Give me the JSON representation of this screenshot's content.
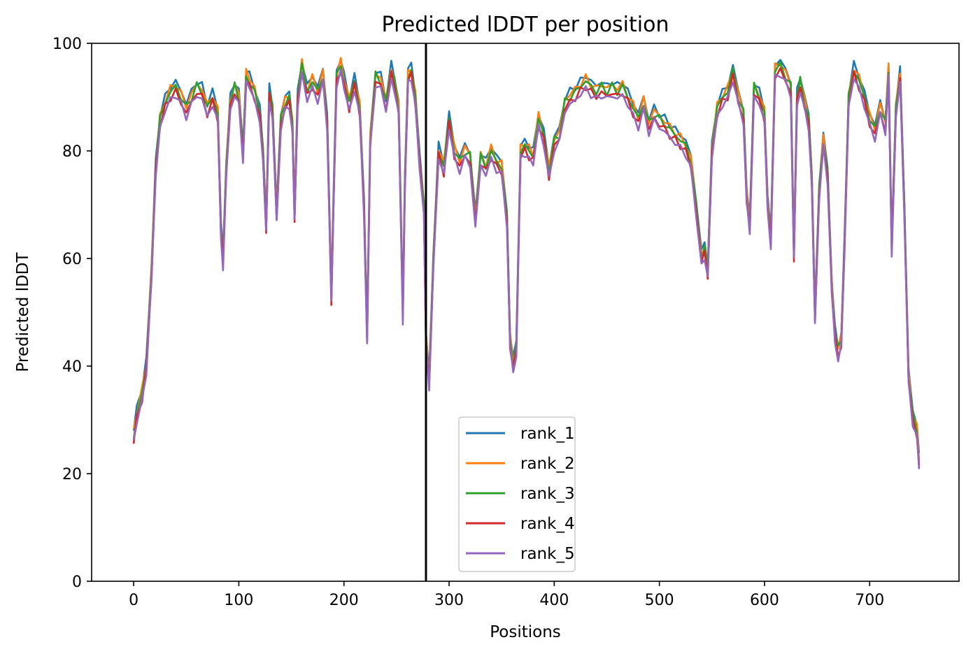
{
  "chart_data": {
    "type": "line",
    "title": "Predicted lDDT per position",
    "xlabel": "Positions",
    "ylabel": "Predicted lDDT",
    "xlim": [
      -40,
      785
    ],
    "ylim": [
      0,
      100
    ],
    "xticks": [
      0,
      100,
      200,
      300,
      400,
      500,
      600,
      700
    ],
    "yticks": [
      0,
      20,
      40,
      60,
      80,
      100
    ],
    "grid": false,
    "legend_position": "lower-center",
    "vertical_marker_x": 278,
    "series": [
      {
        "name": "rank_1",
        "color": "#1f77b4",
        "offset": 1.0
      },
      {
        "name": "rank_2",
        "color": "#ff7f0e",
        "offset": 0.5
      },
      {
        "name": "rank_3",
        "color": "#2ca02c",
        "offset": 0.0
      },
      {
        "name": "rank_4",
        "color": "#d62728",
        "offset": -1.0
      },
      {
        "name": "rank_5",
        "color": "#9467bd",
        "offset": -1.5
      }
    ],
    "profile_x": [
      0,
      3,
      8,
      12,
      17,
      21,
      25,
      30,
      35,
      40,
      45,
      50,
      55,
      60,
      65,
      70,
      75,
      80,
      83,
      85,
      88,
      92,
      96,
      100,
      104,
      107,
      110,
      115,
      120,
      123,
      126,
      129,
      132,
      136,
      140,
      144,
      148,
      151,
      153,
      156,
      160,
      165,
      170,
      175,
      180,
      184,
      188,
      190,
      193,
      197,
      200,
      205,
      210,
      215,
      219,
      222,
      225,
      230,
      235,
      240,
      245,
      248,
      252,
      256,
      258,
      261,
      264,
      268,
      272,
      276,
      278,
      281,
      285,
      290,
      295,
      300,
      305,
      310,
      315,
      320,
      325,
      330,
      335,
      340,
      345,
      350,
      355,
      358,
      361,
      364,
      368,
      372,
      376,
      380,
      385,
      390,
      395,
      400,
      405,
      410,
      415,
      420,
      425,
      430,
      435,
      440,
      445,
      450,
      455,
      460,
      465,
      470,
      475,
      480,
      485,
      490,
      495,
      500,
      505,
      510,
      515,
      520,
      525,
      530,
      535,
      540,
      543,
      546,
      550,
      555,
      560,
      565,
      570,
      575,
      580,
      583,
      586,
      590,
      595,
      600,
      603,
      606,
      610,
      615,
      620,
      625,
      628,
      631,
      634,
      638,
      642,
      645,
      648,
      652,
      656,
      660,
      664,
      667,
      670,
      673,
      676,
      680,
      685,
      690,
      695,
      700,
      705,
      710,
      715,
      718,
      721,
      725,
      729,
      733,
      737,
      741,
      745,
      747
    ],
    "profile_y": [
      27,
      31,
      35,
      40,
      58,
      77,
      86,
      89,
      91,
      92,
      90,
      88,
      90,
      92,
      91,
      88,
      90,
      87,
      65,
      60,
      77,
      89,
      92,
      90,
      80,
      94,
      93,
      91,
      87,
      80,
      66,
      91,
      88,
      68,
      86,
      89,
      90,
      85,
      68,
      90,
      96,
      91,
      93,
      91,
      94,
      86,
      53,
      70,
      94,
      96,
      93,
      89,
      93,
      88,
      70,
      46,
      82,
      94,
      93,
      89,
      95,
      93,
      88,
      50,
      75,
      94,
      95,
      90,
      78,
      70,
      45,
      37,
      60,
      80,
      77,
      86,
      80,
      78,
      80,
      79,
      67,
      79,
      77,
      80,
      78,
      77,
      68,
      45,
      40,
      44,
      80,
      81,
      80,
      79,
      86,
      83,
      76,
      82,
      83,
      89,
      90,
      91,
      92,
      93,
      92,
      91,
      92,
      91,
      92,
      91,
      92,
      90,
      88,
      86,
      89,
      85,
      87,
      86,
      85,
      84,
      83,
      82,
      81,
      78,
      70,
      60,
      62,
      58,
      80,
      88,
      90,
      91,
      95,
      90,
      87,
      72,
      66,
      92,
      90,
      87,
      70,
      64,
      95,
      96,
      94,
      92,
      61,
      90,
      93,
      89,
      86,
      75,
      49,
      73,
      82,
      76,
      55,
      46,
      43,
      45,
      62,
      90,
      95,
      93,
      90,
      86,
      84,
      88,
      85,
      95,
      62,
      88,
      94,
      70,
      38,
      31,
      28,
      22
    ]
  }
}
